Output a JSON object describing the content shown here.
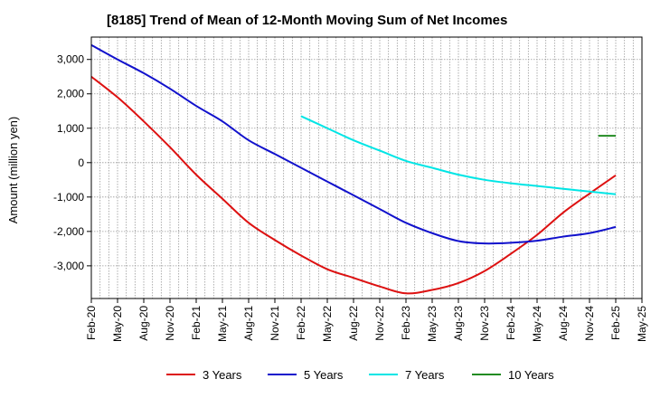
{
  "chart_data": {
    "type": "line",
    "title": "[8185]  Trend of Mean of 12-Month Moving Sum of Net Incomes",
    "xlabel": "",
    "ylabel": "Amount (million yen)",
    "ylim": [
      -3950,
      3650
    ],
    "y_ticks": [
      3000,
      2000,
      1000,
      0,
      -1000,
      -2000,
      -3000
    ],
    "y_tick_labels": [
      "3,000",
      "2,000",
      "1,000",
      "0",
      "-1,000",
      "-2,000",
      "-3,000"
    ],
    "x_ticks": [
      "2020-02",
      "2020-05",
      "2020-08",
      "2020-11",
      "2021-02",
      "2021-05",
      "2021-08",
      "2021-11",
      "2022-02",
      "2022-05",
      "2022-08",
      "2022-11",
      "2023-02",
      "2023-05",
      "2023-08",
      "2023-11",
      "2024-02",
      "2024-05",
      "2024-08",
      "2024-11",
      "2025-02",
      "2025-05"
    ],
    "x_tick_labels": [
      "Feb-20",
      "May-20",
      "Aug-20",
      "Nov-20",
      "Feb-21",
      "May-21",
      "Aug-21",
      "Nov-21",
      "Feb-22",
      "May-22",
      "Aug-22",
      "Nov-22",
      "Feb-23",
      "May-23",
      "Aug-23",
      "Nov-23",
      "Feb-24",
      "May-24",
      "Aug-24",
      "Nov-24",
      "Feb-25",
      "May-25"
    ],
    "grid": true,
    "legend": "bottom",
    "series": [
      {
        "name": "3 Years",
        "color": "#dd1111",
        "x": [
          "2020-02",
          "2020-05",
          "2020-08",
          "2020-11",
          "2021-02",
          "2021-05",
          "2021-08",
          "2021-11",
          "2022-02",
          "2022-05",
          "2022-08",
          "2022-11",
          "2023-02",
          "2023-05",
          "2023-08",
          "2023-11",
          "2024-02",
          "2024-05",
          "2024-08",
          "2024-11",
          "2025-02"
        ],
        "values": [
          2500,
          1900,
          1200,
          450,
          -350,
          -1050,
          -1750,
          -2250,
          -2700,
          -3100,
          -3350,
          -3600,
          -3800,
          -3700,
          -3500,
          -3150,
          -2650,
          -2100,
          -1450,
          -900,
          -370
        ]
      },
      {
        "name": "5 Years",
        "color": "#1111cc",
        "x": [
          "2020-02",
          "2020-05",
          "2020-08",
          "2020-11",
          "2021-02",
          "2021-05",
          "2021-08",
          "2021-11",
          "2022-02",
          "2022-05",
          "2022-08",
          "2022-11",
          "2023-02",
          "2023-05",
          "2023-08",
          "2023-11",
          "2024-02",
          "2024-05",
          "2024-08",
          "2024-11",
          "2025-02"
        ],
        "values": [
          3420,
          3000,
          2600,
          2150,
          1650,
          1200,
          650,
          250,
          -150,
          -550,
          -950,
          -1350,
          -1750,
          -2050,
          -2280,
          -2350,
          -2330,
          -2270,
          -2150,
          -2050,
          -1870
        ]
      },
      {
        "name": "7 Years",
        "color": "#00e5e5",
        "x": [
          "2022-02",
          "2022-05",
          "2022-08",
          "2022-11",
          "2023-02",
          "2023-05",
          "2023-08",
          "2023-11",
          "2024-02",
          "2024-05",
          "2024-08",
          "2024-11",
          "2025-02"
        ],
        "values": [
          1350,
          1000,
          650,
          350,
          50,
          -150,
          -350,
          -500,
          -600,
          -680,
          -760,
          -840,
          -920
        ]
      },
      {
        "name": "10 Years",
        "color": "#228b22",
        "x": [
          "2024-12",
          "2025-02"
        ],
        "values": [
          780,
          780
        ]
      }
    ]
  }
}
